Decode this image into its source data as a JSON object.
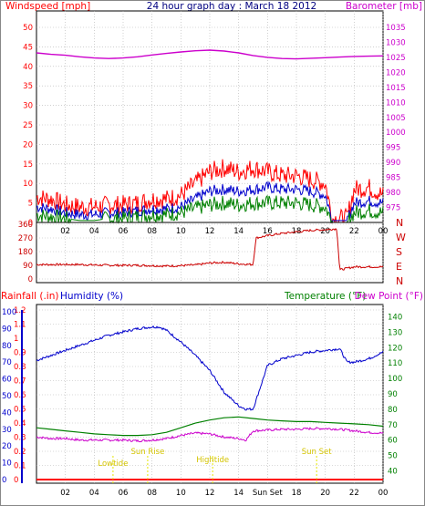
{
  "header": {
    "left_label": "Windspeed [mph]",
    "title": "24 hour graph day : March 18 2012",
    "right_label": "Barometer [mb]"
  },
  "colors": {
    "wind_gust": "#ff0000",
    "wind_avg": "#0000cc",
    "wind_low": "#008000",
    "barometer": "#cc00cc",
    "direction": "#cc0000",
    "humidity": "#0000cc",
    "temperature": "#008000",
    "dew_point": "#cc00cc",
    "rainfall": "#ff0000",
    "marker": "#e6e600",
    "frame": "#000000",
    "grid": "#b3b3b3"
  },
  "chart_data": [
    {
      "type": "line",
      "title": "24 hour graph day : March 18 2012",
      "ylabel": "Windspeed [mph]",
      "y2label": "Barometer [mb]",
      "ylim": [
        0,
        50
      ],
      "y2lim": [
        970,
        1035
      ],
      "yticks": [
        "0",
        "5",
        "10",
        "15",
        "20",
        "25",
        "30",
        "35",
        "40",
        "45",
        "50"
      ],
      "y2ticks": [
        "975",
        "980",
        "985",
        "990",
        "995",
        "1000",
        "1005",
        "1010",
        "1015",
        "1020",
        "1025",
        "1030",
        "1035"
      ],
      "xticks": [
        "02",
        "04",
        "06",
        "08",
        "10",
        "12",
        "14",
        "16",
        "18",
        "20",
        "22",
        "00"
      ],
      "xlim": [
        0,
        24
      ],
      "grid": true,
      "series": [
        {
          "id": "gust",
          "x": [
            0,
            1,
            2,
            3,
            4,
            5,
            6,
            7,
            8,
            9,
            10,
            11,
            12,
            13,
            14,
            15,
            16,
            17,
            18,
            19,
            20,
            20.5,
            21,
            21.5,
            22,
            23,
            24
          ],
          "y": [
            6.5,
            6,
            4.5,
            4,
            4,
            4.5,
            4.5,
            5,
            6,
            6,
            7,
            10,
            13,
            14,
            13,
            14,
            13,
            12,
            12,
            11,
            10,
            1,
            1,
            1,
            8.5,
            9,
            7
          ]
        },
        {
          "id": "avg",
          "x": [
            0,
            1,
            2,
            3,
            4,
            5,
            6,
            7,
            8,
            9,
            10,
            11,
            12,
            13,
            14,
            15,
            16,
            17,
            18,
            19,
            20,
            20.5,
            21,
            21.5,
            22,
            23,
            24
          ],
          "y": [
            4,
            3.5,
            2.5,
            2,
            2,
            2.5,
            2.5,
            3,
            3.5,
            3.5,
            4,
            6,
            8,
            8.5,
            8,
            8.5,
            9,
            8.5,
            8.5,
            8,
            7,
            0.5,
            0.5,
            0.5,
            5,
            5.5,
            5
          ]
        },
        {
          "id": "low",
          "x": [
            0,
            1,
            2,
            3,
            4,
            5,
            6,
            7,
            8,
            9,
            10,
            11,
            12,
            13,
            14,
            15,
            16,
            17,
            18,
            19,
            20,
            20.5,
            21,
            21.5,
            22,
            23,
            24
          ],
          "y": [
            2,
            1.5,
            1,
            0.5,
            0.5,
            1,
            1,
            1.5,
            2,
            2,
            2.5,
            3.5,
            4.5,
            5,
            4.5,
            5,
            5,
            5,
            5,
            4.5,
            4,
            0,
            0,
            0,
            2.5,
            3,
            2.5
          ]
        },
        {
          "id": "barometer",
          "axis": "y2",
          "x": [
            0,
            1,
            2,
            3,
            4,
            5,
            6,
            7,
            8,
            9,
            10,
            11,
            12,
            13,
            14,
            15,
            16,
            17,
            18,
            19,
            20,
            21,
            22,
            23,
            24
          ],
          "y": [
            1026.5,
            1026,
            1025.7,
            1025.2,
            1024.8,
            1024.6,
            1024.8,
            1025.2,
            1025.8,
            1026.3,
            1026.8,
            1027.2,
            1027.4,
            1027.1,
            1026.5,
            1025.6,
            1025,
            1024.6,
            1024.5,
            1024.7,
            1024.9,
            1025.1,
            1025.3,
            1025.4,
            1025.5
          ]
        }
      ]
    },
    {
      "type": "line",
      "yticks": [
        "0",
        "90",
        "180",
        "270",
        "360"
      ],
      "ylim": [
        0,
        360
      ],
      "compass": [
        "N",
        "W",
        "S",
        "E",
        "N"
      ],
      "xlim": [
        0,
        24
      ],
      "grid": true,
      "series": [
        {
          "id": "direction",
          "x": [
            0,
            1,
            2,
            3,
            4,
            5,
            6,
            7,
            8,
            9,
            10,
            11,
            12,
            13,
            14,
            15,
            15.2,
            16,
            17,
            18,
            19,
            20,
            20.8,
            21,
            22,
            23,
            24
          ],
          "y": [
            95,
            95,
            95,
            95,
            92,
            90,
            90,
            90,
            88,
            85,
            88,
            92,
            105,
            110,
            100,
            95,
            270,
            285,
            300,
            310,
            320,
            325,
            330,
            60,
            80,
            80,
            80
          ]
        }
      ]
    },
    {
      "type": "line",
      "left_label_a": "Rainfall (.in)",
      "left_label_b": "Humidity (%)",
      "right_label_a": "Temperature (°F)",
      "right_label_b": "Dew Point (°F)",
      "rain_ticks": [
        "0",
        "0.1",
        "0.2",
        "0.3",
        "0.4",
        "0.5",
        "0.6",
        "0.7",
        "0.8",
        "0.9",
        "1",
        "1.1",
        "1.2"
      ],
      "hum_ticks": [
        "0",
        "10",
        "20",
        "30",
        "40",
        "50",
        "60",
        "70",
        "80",
        "90",
        "100"
      ],
      "temp_ticks": [
        "40",
        "50",
        "60",
        "70",
        "80",
        "90",
        "100",
        "110",
        "120",
        "130",
        "140"
      ],
      "rain_lim": [
        0,
        1.2
      ],
      "hum_lim": [
        0,
        100
      ],
      "temp_lim": [
        32,
        148
      ],
      "xticks": [
        "02",
        "04",
        "06",
        "08",
        "10",
        "12",
        "14",
        "Sun Set",
        "18",
        "20",
        "22",
        "00"
      ],
      "xlim": [
        0,
        24
      ],
      "grid": true,
      "events": [
        {
          "label": "Lowtide",
          "x": 5.3
        },
        {
          "label": "Sun Rise",
          "x": 7.7
        },
        {
          "label": "Hightide",
          "x": 12.2
        },
        {
          "label": "Sun Set",
          "x": 19.4
        }
      ],
      "series": [
        {
          "id": "humidity",
          "axis": "hum",
          "x": [
            0,
            1,
            2,
            3,
            4,
            5,
            6,
            7,
            8,
            8.5,
            9,
            10,
            11,
            12,
            13,
            14,
            14.5,
            15,
            15.5,
            16,
            17,
            18,
            19,
            20,
            21,
            21.5,
            22,
            23,
            24
          ],
          "y": [
            71,
            74,
            77,
            80,
            83,
            86,
            88,
            90,
            91,
            91,
            89,
            82,
            74,
            65,
            52,
            44,
            42,
            42,
            55,
            68,
            72,
            74,
            76,
            77,
            78,
            70,
            70,
            72,
            76
          ]
        },
        {
          "id": "temperature",
          "axis": "temp",
          "x": [
            0,
            1,
            2,
            3,
            4,
            5,
            6,
            7,
            8,
            9,
            10,
            11,
            12,
            13,
            14,
            15,
            16,
            17,
            18,
            19,
            20,
            21,
            22,
            23,
            24
          ],
          "y": [
            68,
            67,
            66,
            65,
            64,
            63.5,
            63,
            63,
            63.5,
            65,
            68,
            71,
            73,
            74.5,
            75,
            74,
            73,
            72.5,
            72,
            72,
            71.5,
            71,
            70.5,
            70,
            69
          ]
        },
        {
          "id": "dew_point",
          "axis": "temp",
          "x": [
            0,
            1,
            2,
            3,
            4,
            5,
            6,
            7,
            8,
            9,
            10,
            11,
            12,
            13,
            14,
            14.5,
            15,
            16,
            17,
            18,
            19,
            20,
            21,
            22,
            23,
            24
          ],
          "y": [
            62,
            61,
            61,
            60,
            60,
            60,
            60,
            59.5,
            60,
            61,
            63,
            64.5,
            64,
            62,
            61,
            60,
            66,
            66.5,
            67,
            67,
            67.5,
            67.5,
            67,
            66,
            65,
            64.5
          ]
        },
        {
          "id": "rainfall",
          "axis": "rain",
          "x": [
            0,
            24
          ],
          "y": [
            0,
            0
          ]
        }
      ]
    }
  ]
}
